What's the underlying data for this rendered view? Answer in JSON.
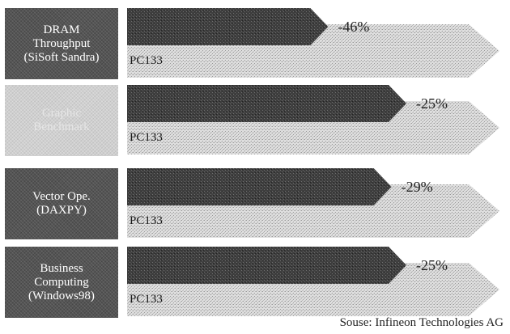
{
  "chart_data": {
    "type": "bar",
    "orientation": "horizontal",
    "baseline_label": "PC133",
    "categories": [
      {
        "label": "DRAM\nThroughput\n(SiSoft Sandra)",
        "style": "dark"
      },
      {
        "label": "Graphic\nBenchmark",
        "style": "light"
      },
      {
        "label": "Vector Ope.\n(DAXPY)",
        "style": "dark"
      },
      {
        "label": "Business\nComputing\n(Windows98)",
        "style": "dark"
      }
    ],
    "series": [
      {
        "values": [
          100,
          100,
          100,
          100
        ],
        "color": "#cfcfcf"
      },
      {
        "values": [
          54,
          75,
          71,
          75
        ],
        "color": "#3a3a3a"
      }
    ],
    "value_labels": [
      "-46%",
      "-25%",
      "-29%",
      "-25%"
    ],
    "xlim": [
      0,
      100
    ]
  },
  "source": "Souse: Infineon Technologies AG"
}
